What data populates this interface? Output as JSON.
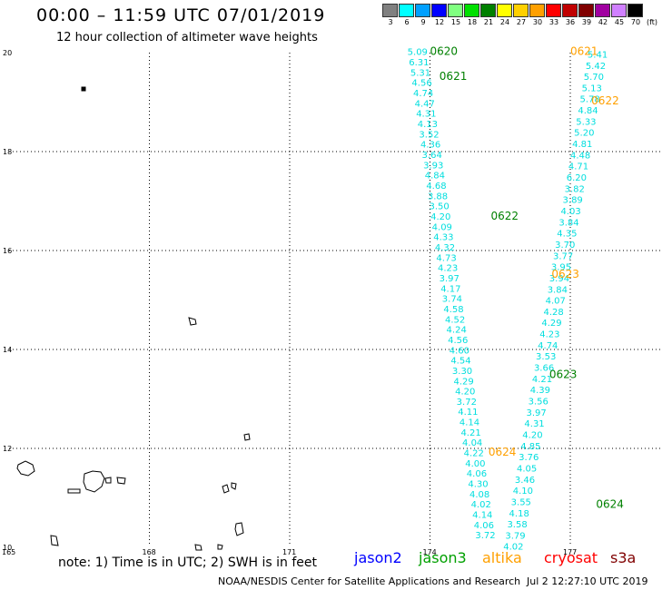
{
  "header": {
    "title": "00:00 – 11:59 UTC 07/01/2019",
    "subtitle": "12 hour collection of altimeter wave heights"
  },
  "legend": {
    "unit": "(ft)",
    "bins": [
      {
        "label": "3",
        "color": "#808080"
      },
      {
        "label": "6",
        "color": "#00ffff"
      },
      {
        "label": "9",
        "color": "#00a0ff"
      },
      {
        "label": "12",
        "color": "#0000ff"
      },
      {
        "label": "15",
        "color": "#80ff80"
      },
      {
        "label": "18",
        "color": "#00e000"
      },
      {
        "label": "21",
        "color": "#008000"
      },
      {
        "label": "24",
        "color": "#ffff00"
      },
      {
        "label": "27",
        "color": "#ffd000"
      },
      {
        "label": "30",
        "color": "#ffa000"
      },
      {
        "label": "33",
        "color": "#ff0000"
      },
      {
        "label": "36",
        "color": "#c00000"
      },
      {
        "label": "39",
        "color": "#800000"
      },
      {
        "label": "42",
        "color": "#a000a0"
      },
      {
        "label": "45",
        "color": "#d080ff"
      },
      {
        "label": "70",
        "color": "#000000"
      }
    ]
  },
  "map": {
    "lon_labels": [
      "165",
      "168",
      "171",
      "174",
      "177"
    ],
    "lat_labels": [
      "20",
      "18",
      "16",
      "14",
      "12",
      "10"
    ],
    "time_tags": [
      {
        "text": "0620",
        "lon": 174.0,
        "lat": 19.95,
        "color": "#008000"
      },
      {
        "text": "0621",
        "lon": 174.2,
        "lat": 19.45,
        "color": "#008000"
      },
      {
        "text": "0621",
        "lon": 177.0,
        "lat": 19.95,
        "color": "#ffa000"
      },
      {
        "text": "0622",
        "lon": 177.45,
        "lat": 18.95,
        "color": "#ffa000"
      },
      {
        "text": "0622",
        "lon": 175.3,
        "lat": 16.62,
        "color": "#008000"
      },
      {
        "text": "0623",
        "lon": 176.6,
        "lat": 15.45,
        "color": "#ffa000"
      },
      {
        "text": "0623",
        "lon": 176.55,
        "lat": 13.42,
        "color": "#008000"
      },
      {
        "text": "0624",
        "lon": 175.25,
        "lat": 11.85,
        "color": "#ffa000"
      },
      {
        "text": "0624",
        "lon": 177.55,
        "lat": 10.8,
        "color": "#008000"
      }
    ],
    "track_a": {
      "color": "#00dede",
      "values": [
        "5.09",
        "6.31",
        "5.31",
        "4.56",
        "4.74",
        "4.47",
        "4.31",
        "4.13",
        "3.52",
        "4.36",
        "3.64",
        "3.93",
        "4.84",
        "4.68",
        "3.88",
        "3.50",
        "4.20",
        "4.09",
        "4.33",
        "4.32",
        "4.73",
        "4.23",
        "3.97",
        "4.17",
        "3.74",
        "4.58",
        "4.52",
        "4.24",
        "4.56",
        "4.60",
        "4.54",
        "3.30",
        "4.29",
        "4.20",
        "3.72",
        "4.11",
        "4.14",
        "4.21",
        "4.04",
        "4.22",
        "4.00",
        "4.06",
        "4.30",
        "4.08",
        "4.02",
        "4.14",
        "4.06",
        "3.72"
      ]
    },
    "track_b": {
      "color": "#00dede",
      "values": [
        "5.41",
        "5.42",
        "5.70",
        "5.13",
        "5.78",
        "4.84",
        "5.33",
        "5.20",
        "4.81",
        "4.48",
        "4.71",
        "6.20",
        "3.82",
        "3.89",
        "4.03",
        "3.84",
        "4.35",
        "3.70",
        "3.77",
        "3.95",
        "3.94",
        "3.84",
        "4.07",
        "4.28",
        "4.29",
        "4.23",
        "4.74",
        "3.53",
        "3.66",
        "4.21",
        "4.39",
        "3.56",
        "3.97",
        "4.31",
        "4.20",
        "4.85",
        "3.76",
        "4.05",
        "3.46",
        "4.10",
        "3.55",
        "4.18",
        "3.58",
        "3.79",
        "4.02"
      ]
    }
  },
  "footer": {
    "note": "note:  1) Time is in UTC;  2) SWH is in feet",
    "satellites": [
      {
        "name": "jason2",
        "color": "#0000ff"
      },
      {
        "name": "jason3",
        "color": "#00a000"
      },
      {
        "name": "altika",
        "color": "#ffa000"
      },
      {
        "name": "cryosat",
        "color": "#ff0000"
      },
      {
        "name": "s3a",
        "color": "#800000"
      }
    ],
    "credit": "NOAA/NESDIS Center for Satellite Applications and Research",
    "timestamp": "Jul  2 12:27:10 UTC 2019"
  }
}
